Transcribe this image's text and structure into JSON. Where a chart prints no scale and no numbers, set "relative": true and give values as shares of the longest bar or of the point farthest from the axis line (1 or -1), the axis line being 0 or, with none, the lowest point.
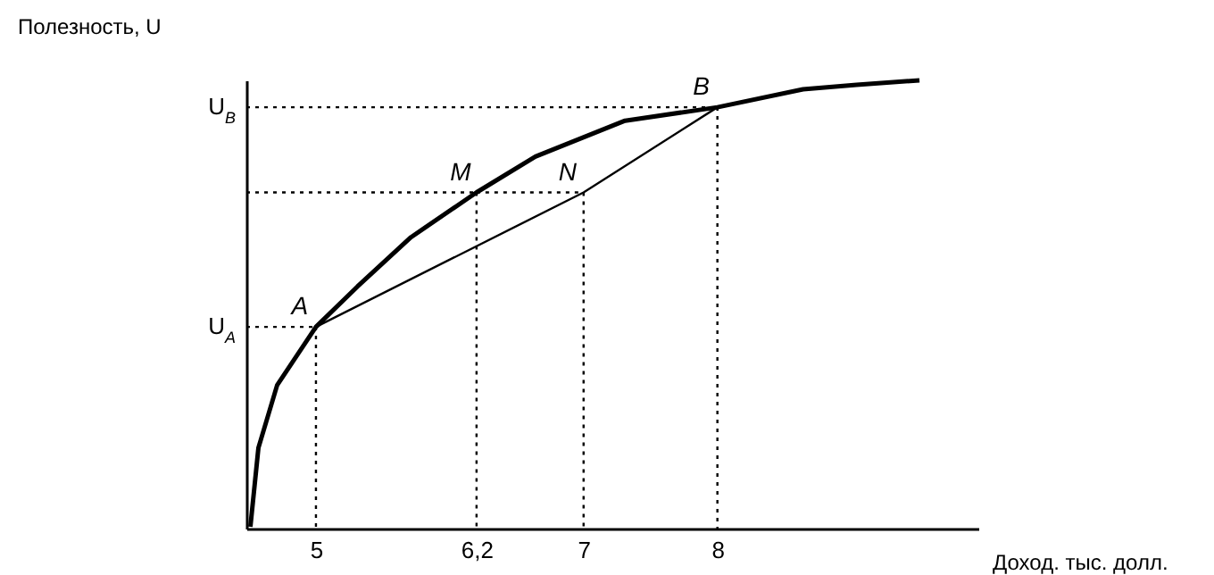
{
  "chart_data": {
    "type": "line",
    "relative": true,
    "xlabel": "Доход. тыс. долл.",
    "ylabel": "Полезность, U",
    "xlim": [
      4.48,
      9.95
    ],
    "xticks": [
      5,
      {
        "value": 6.2,
        "label": "6,2"
      },
      7,
      8
    ],
    "series": [
      {
        "type": "line",
        "color": "#000000",
        "x": [
          4.51,
          4.57,
          4.71,
          5,
          5.31,
          5.71,
          6.2,
          6.64,
          7.31,
          8,
          8.64,
          9.04,
          9.51
        ],
        "values": [
          0.004,
          0.18,
          0.32,
          0.45,
          0.54,
          0.65,
          0.75,
          0.83,
          0.91,
          0.94,
          0.98,
          0.99,
          1
        ]
      },
      {
        "type": "line",
        "color": "#000000",
        "x": [
          5,
          7,
          8
        ],
        "values": [
          0.45,
          0.75,
          0.94
        ]
      }
    ],
    "annotations": [
      {
        "text": "A",
        "x": 5,
        "y": 0.45
      },
      {
        "text": "M",
        "x": 6.2,
        "y": 0.75
      },
      {
        "text": "N",
        "x": 7,
        "y": 0.75
      },
      {
        "text": "B",
        "x": 8,
        "y": 0.94
      }
    ],
    "ref_lines": [
      {
        "axis": "y",
        "value": 0.45,
        "label": "U$_{A}$",
        "line_style": "dotted"
      },
      {
        "axis": "y",
        "value": 0.94,
        "label": "U$_{B}$",
        "line_style": "dotted"
      },
      {
        "axis": "y",
        "value": 0.75,
        "line_style": "dotted"
      }
    ]
  }
}
